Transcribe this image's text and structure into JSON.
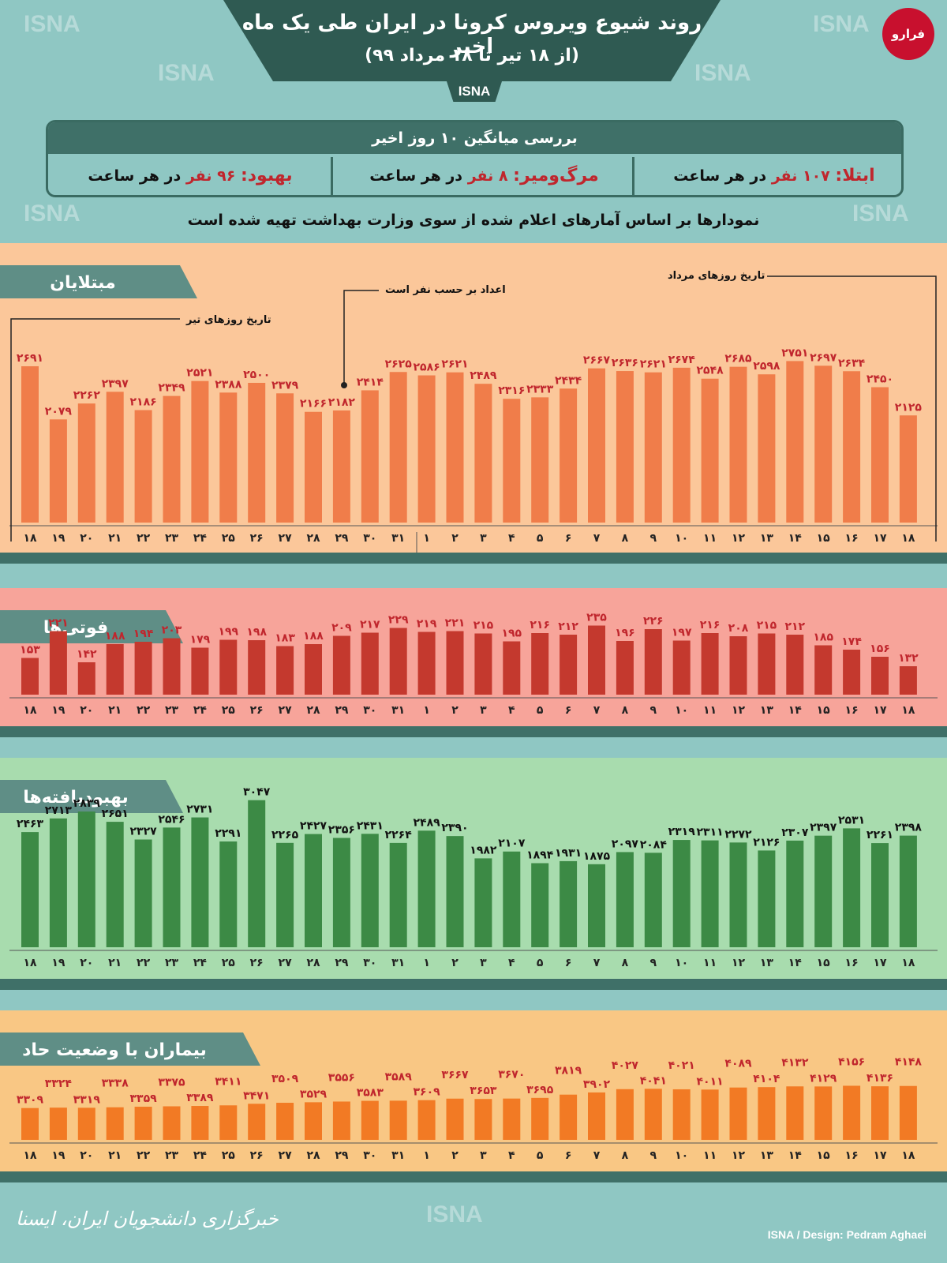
{
  "header": {
    "title": "روند شیوع ویروس کرونا در ایران طی یک ماه اخیر",
    "subtitle": "(از ۱۸ تیر تا ۱۸ مرداد ۹۹)",
    "agency": "ISNA",
    "logo_text": "فرارو"
  },
  "summary": {
    "heading": "بررسی میانگین ۱۰ روز اخیر",
    "infection_label": "ابتلا:",
    "infection_value": "۱۰۷ نفر",
    "infection_unit": "در هر ساعت",
    "death_label": "مرگ‌ومیر:",
    "death_value": "۸ نفر",
    "death_unit": "در هر ساعت",
    "recovery_label": "بهبود:",
    "recovery_value": "۹۶ نفر",
    "recovery_unit": "در هر ساعت"
  },
  "source_note": "نمودارها بر اساس آمارهای اعلام شده از سوی وزارت بهداشت تهیه شده است",
  "annotations": {
    "tir_dates": "تاریخ روزهای تیر",
    "mordad_dates": "تاریخ روزهای مرداد",
    "per_person": "اعداد بر حسب نفر است"
  },
  "watermark": "ISNA",
  "footer": {
    "left": "خبرگزاری دانشجویان ایران، ایسنا",
    "right": "ISNA / Design: Pedram Aghaei"
  },
  "colors": {
    "cases_bar": "#f07d4a",
    "cases_bg": "#fbc79a",
    "deaths_bar": "#c4392e",
    "deaths_bg": "#f7a49a",
    "recovered_bar": "#3c8a45",
    "recovered_bg": "#a8dcae",
    "severe_bar": "#f27a24",
    "severe_bg": "#f9c784",
    "band": "#3f7068",
    "label_red": "#c0262d"
  },
  "chart_data": [
    {
      "type": "bar",
      "title": "مبتلایان",
      "categories": [
        "۱۸",
        "۱۹",
        "۲۰",
        "۲۱",
        "۲۲",
        "۲۳",
        "۲۴",
        "۲۵",
        "۲۶",
        "۲۷",
        "۲۸",
        "۲۹",
        "۳۰",
        "۳۱",
        "۱",
        "۲",
        "۳",
        "۴",
        "۵",
        "۶",
        "۷",
        "۸",
        "۹",
        "۱۰",
        "۱۱",
        "۱۲",
        "۱۳",
        "۱۴",
        "۱۵",
        "۱۶",
        "۱۷",
        "۱۸"
      ],
      "values": [
        2691,
        2079,
        2262,
        2397,
        2186,
        2349,
        2521,
        2388,
        2500,
        2379,
        2166,
        2182,
        2414,
        2625,
        2586,
        2621,
        2489,
        2316,
        2333,
        2434,
        2667,
        2636,
        2621,
        2674,
        2548,
        2685,
        2598,
        2751,
        2697,
        2634,
        2450,
        2125
      ],
      "value_labels": [
        "۲۶۹۱",
        "۲۰۷۹",
        "۲۲۶۲",
        "۲۳۹۷",
        "۲۱۸۶",
        "۲۳۴۹",
        "۲۵۲۱",
        "۲۳۸۸",
        "۲۵۰۰",
        "۲۳۷۹",
        "۲۱۶۶",
        "۲۱۸۲",
        "۲۴۱۴",
        "۲۶۲۵",
        "۲۵۸۶",
        "۲۶۲۱",
        "۲۴۸۹",
        "۲۳۱۶",
        "۲۳۳۳",
        "۲۴۳۴",
        "۲۶۶۷",
        "۲۶۳۶",
        "۲۶۲۱",
        "۲۶۷۴",
        "۲۵۴۸",
        "۲۶۸۵",
        "۲۵۹۸",
        "۲۷۵۱",
        "۲۶۹۷",
        "۲۶۳۴",
        "۲۴۵۰",
        "۲۱۲۵"
      ],
      "ylim": [
        0,
        2800
      ]
    },
    {
      "type": "bar",
      "title": "فوتی‌ها",
      "categories": [
        "۱۸",
        "۱۹",
        "۲۰",
        "۲۱",
        "۲۲",
        "۲۳",
        "۲۴",
        "۲۵",
        "۲۶",
        "۲۷",
        "۲۸",
        "۲۹",
        "۳۰",
        "۳۱",
        "۱",
        "۲",
        "۳",
        "۴",
        "۵",
        "۶",
        "۷",
        "۸",
        "۹",
        "۱۰",
        "۱۱",
        "۱۲",
        "۱۳",
        "۱۴",
        "۱۵",
        "۱۶",
        "۱۷",
        "۱۸"
      ],
      "values": [
        153,
        221,
        142,
        188,
        194,
        203,
        179,
        199,
        198,
        183,
        188,
        209,
        217,
        229,
        219,
        221,
        215,
        195,
        216,
        212,
        235,
        196,
        226,
        197,
        216,
        208,
        215,
        212,
        185,
        174,
        156,
        132
      ],
      "value_labels": [
        "۱۵۳",
        "۲۲۱",
        "۱۴۲",
        "۱۸۸",
        "۱۹۴",
        "۲۰۳",
        "۱۷۹",
        "۱۹۹",
        "۱۹۸",
        "۱۸۳",
        "۱۸۸",
        "۲۰۹",
        "۲۱۷",
        "۲۲۹",
        "۲۱۹",
        "۲۲۱",
        "۲۱۵",
        "۱۹۵",
        "۲۱۶",
        "۲۱۲",
        "۲۳۵",
        "۱۹۶",
        "۲۲۶",
        "۱۹۷",
        "۲۱۶",
        "۲۰۸",
        "۲۱۵",
        "۲۱۲",
        "۱۸۵",
        "۱۷۴",
        "۱۵۶",
        "۱۳۲"
      ],
      "ylim": [
        0,
        240
      ]
    },
    {
      "type": "bar",
      "title": "بهبودیافته‌ها",
      "categories": [
        "۱۸",
        "۱۹",
        "۲۰",
        "۲۱",
        "۲۲",
        "۲۳",
        "۲۴",
        "۲۵",
        "۲۶",
        "۲۷",
        "۲۸",
        "۲۹",
        "۳۰",
        "۳۱",
        "۱",
        "۲",
        "۳",
        "۴",
        "۵",
        "۶",
        "۷",
        "۸",
        "۹",
        "۱۰",
        "۱۱",
        "۱۲",
        "۱۳",
        "۱۴",
        "۱۵",
        "۱۶",
        "۱۷",
        "۱۸"
      ],
      "values": [
        2463,
        2713,
        2839,
        2651,
        2327,
        2546,
        2731,
        2291,
        3047,
        2265,
        2427,
        2356,
        2431,
        2264,
        2489,
        2390,
        1982,
        2107,
        1894,
        1931,
        1875,
        2097,
        2084,
        2319,
        2311,
        2272,
        2126,
        2307,
        2397,
        2531,
        2261,
        2398
      ],
      "value_labels": [
        "۲۴۶۳",
        "۲۷۱۳",
        "۲۸۳۹",
        "۲۶۵۱",
        "۲۳۲۷",
        "۲۵۴۶",
        "۲۷۳۱",
        "۲۲۹۱",
        "۳۰۴۷",
        "۲۲۶۵",
        "۲۴۲۷",
        "۲۳۵۶",
        "۲۴۳۱",
        "۲۲۶۴",
        "۲۴۸۹",
        "۲۳۹۰",
        "۱۹۸۲",
        "۲۱۰۷",
        "۱۸۹۴",
        "۱۹۳۱",
        "۱۸۷۵",
        "۲۰۹۷",
        "۲۰۸۴",
        "۲۳۱۹",
        "۲۳۱۱",
        "۲۲۷۲",
        "۲۱۲۶",
        "۲۳۰۷",
        "۲۳۹۷",
        "۲۵۳۱",
        "۲۲۶۱",
        "۲۳۹۸"
      ],
      "ylim": [
        0,
        3100
      ]
    },
    {
      "type": "bar",
      "title": "بیماران با وضعیت حاد",
      "categories": [
        "۱۸",
        "۱۹",
        "۲۰",
        "۲۱",
        "۲۲",
        "۲۳",
        "۲۴",
        "۲۵",
        "۲۶",
        "۲۷",
        "۲۸",
        "۲۹",
        "۳۰",
        "۳۱",
        "۱",
        "۲",
        "۳",
        "۴",
        "۵",
        "۶",
        "۷",
        "۸",
        "۹",
        "۱۰",
        "۱۱",
        "۱۲",
        "۱۳",
        "۱۴",
        "۱۵",
        "۱۶",
        "۱۷",
        "۱۸"
      ],
      "values": [
        3309,
        3324,
        3319,
        3338,
        3359,
        3375,
        3389,
        3411,
        3471,
        3509,
        3529,
        3556,
        3583,
        3589,
        3609,
        3667,
        3653,
        3670,
        3695,
        3819,
        3902,
        4027,
        4041,
        4021,
        4011,
        4089,
        4104,
        4132,
        4129,
        4156,
        4136,
        4148
      ],
      "value_labels": [
        "۳۳۰۹",
        "۳۳۲۴",
        "۳۳۱۹",
        "۳۳۳۸",
        "۳۳۵۹",
        "۳۳۷۵",
        "۳۳۸۹",
        "۳۴۱۱",
        "۳۴۷۱",
        "۳۵۰۹",
        "۳۵۲۹",
        "۳۵۵۶",
        "۳۵۸۳",
        "۳۵۸۹",
        "۳۶۰۹",
        "۳۶۶۷",
        "۳۶۵۳",
        "۳۶۷۰",
        "۳۶۹۵",
        "۳۸۱۹",
        "۳۹۰۲",
        "۴۰۲۷",
        "۴۰۴۱",
        "۴۰۲۱",
        "۴۰۱۱",
        "۴۰۸۹",
        "۴۱۰۴",
        "۴۱۳۲",
        "۴۱۲۹",
        "۴۱۵۶",
        "۴۱۳۶",
        "۴۱۴۸"
      ],
      "ylim": [
        0,
        4200
      ]
    }
  ]
}
